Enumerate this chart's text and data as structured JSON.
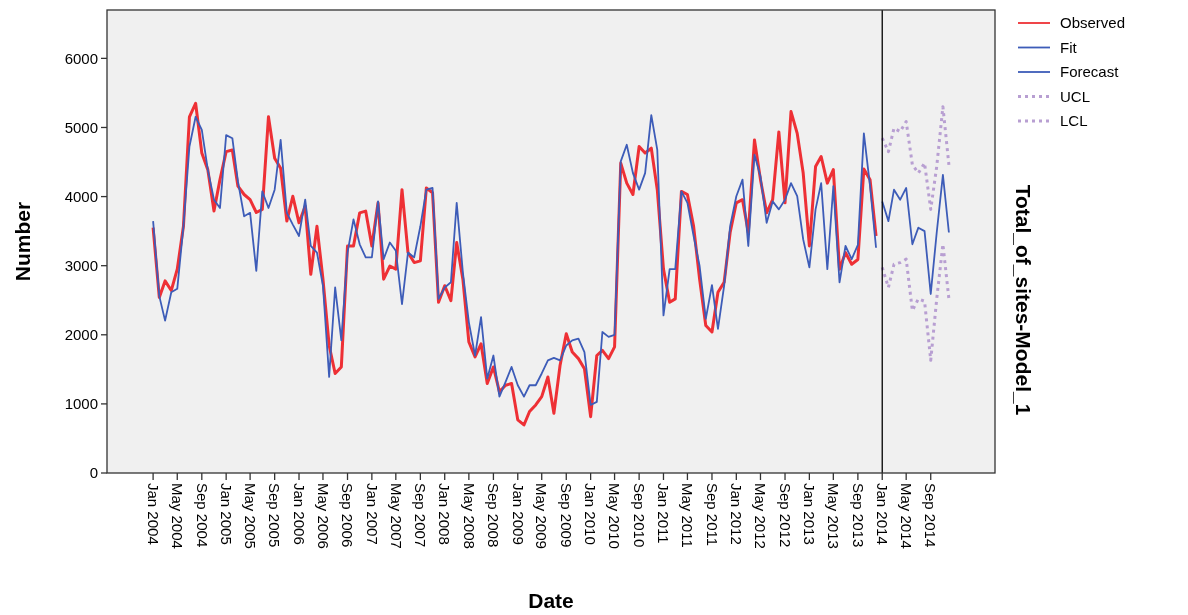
{
  "chart_data": {
    "type": "line",
    "title": "Total_of_sites-Model_1",
    "xlabel": "Date",
    "ylabel": "Number",
    "x": [
      "2004-01",
      "2004-02",
      "2004-03",
      "2004-04",
      "2004-05",
      "2004-06",
      "2004-07",
      "2004-08",
      "2004-09",
      "2004-10",
      "2004-11",
      "2004-12",
      "2005-01",
      "2005-02",
      "2005-03",
      "2005-04",
      "2005-05",
      "2005-06",
      "2005-07",
      "2005-08",
      "2005-09",
      "2005-10",
      "2005-11",
      "2005-12",
      "2006-01",
      "2006-02",
      "2006-03",
      "2006-04",
      "2006-05",
      "2006-06",
      "2006-07",
      "2006-08",
      "2006-09",
      "2006-10",
      "2006-11",
      "2006-12",
      "2007-01",
      "2007-02",
      "2007-03",
      "2007-04",
      "2007-05",
      "2007-06",
      "2007-07",
      "2007-08",
      "2007-09",
      "2007-10",
      "2007-11",
      "2007-12",
      "2008-01",
      "2008-02",
      "2008-03",
      "2008-04",
      "2008-05",
      "2008-06",
      "2008-07",
      "2008-08",
      "2008-09",
      "2008-10",
      "2008-11",
      "2008-12",
      "2009-01",
      "2009-02",
      "2009-03",
      "2009-04",
      "2009-05",
      "2009-06",
      "2009-07",
      "2009-08",
      "2009-09",
      "2009-10",
      "2009-11",
      "2009-12",
      "2010-01",
      "2010-02",
      "2010-03",
      "2010-04",
      "2010-05",
      "2010-06",
      "2010-07",
      "2010-08",
      "2010-09",
      "2010-10",
      "2010-11",
      "2010-12",
      "2011-01",
      "2011-02",
      "2011-03",
      "2011-04",
      "2011-05",
      "2011-06",
      "2011-07",
      "2011-08",
      "2011-09",
      "2011-10",
      "2011-11",
      "2011-12",
      "2012-01",
      "2012-02",
      "2012-03",
      "2012-04",
      "2012-05",
      "2012-06",
      "2012-07",
      "2012-08",
      "2012-09",
      "2012-10",
      "2012-11",
      "2012-12",
      "2013-01",
      "2013-02",
      "2013-03",
      "2013-04",
      "2013-05",
      "2013-06",
      "2013-07",
      "2013-08",
      "2013-09",
      "2013-10",
      "2013-11",
      "2013-12"
    ],
    "series": [
      {
        "name": "Observed",
        "color": "#ee3035",
        "line_style": "solid",
        "values": [
          3550,
          2540,
          2780,
          2640,
          2950,
          3570,
          5155,
          5350,
          4630,
          4390,
          3790,
          4245,
          4650,
          4675,
          4150,
          4030,
          3955,
          3770,
          3815,
          5155,
          4555,
          4410,
          3645,
          4005,
          3620,
          3860,
          2875,
          3570,
          2805,
          1845,
          1440,
          1535,
          3285,
          3285,
          3765,
          3790,
          3285,
          3910,
          2805,
          2995,
          2950,
          4100,
          3190,
          3045,
          3070,
          4125,
          4055,
          2470,
          2710,
          2495,
          3335,
          2805,
          1895,
          1680,
          1870,
          1295,
          1535,
          1175,
          1270,
          1295,
          770,
          695,
          890,
          985,
          1105,
          1390,
          865,
          1560,
          2015,
          1750,
          1655,
          1510,
          815,
          1700,
          1775,
          1655,
          1825,
          4485,
          4195,
          4030,
          4725,
          4630,
          4700,
          4100,
          2950,
          2470,
          2520,
          4075,
          4030,
          3570,
          2805,
          2135,
          2040,
          2615,
          2760,
          3480,
          3910,
          3955,
          3480,
          4820,
          4245,
          3765,
          3955,
          4935,
          3910,
          5230,
          4915,
          4340,
          3285,
          4435,
          4580,
          4195,
          4390,
          2950,
          3190,
          3020,
          3090,
          4400,
          4245,
          3430
        ]
      },
      {
        "name": "Fit",
        "color": "#3d5cb8",
        "line_style": "solid",
        "values": [
          3645,
          2560,
          2205,
          2615,
          2665,
          3570,
          4725,
          5155,
          4965,
          4390,
          3955,
          3835,
          4890,
          4845,
          4220,
          3715,
          3765,
          2925,
          4075,
          3835,
          4100,
          4820,
          3765,
          3595,
          3430,
          3955,
          3285,
          3190,
          2710,
          1390,
          2685,
          1920,
          3190,
          3670,
          3310,
          3120,
          3120,
          3930,
          3095,
          3335,
          3215,
          2445,
          3190,
          3120,
          3570,
          4100,
          4125,
          2520,
          2685,
          2760,
          3910,
          2900,
          2180,
          1700,
          2255,
          1365,
          1700,
          1105,
          1320,
          1535,
          1270,
          1105,
          1270,
          1270,
          1440,
          1630,
          1665,
          1630,
          1845,
          1920,
          1945,
          1750,
          985,
          1030,
          2040,
          1970,
          2000,
          4510,
          4750,
          4340,
          4100,
          4340,
          5180,
          4675,
          2280,
          2950,
          2950,
          4075,
          3910,
          3430,
          2995,
          2230,
          2720,
          2085,
          2710,
          3570,
          4005,
          4245,
          3285,
          4605,
          4290,
          3620,
          3930,
          3815,
          3955,
          4195,
          4005,
          3380,
          2975,
          3815,
          4195,
          2950,
          4150,
          2760,
          3285,
          3095,
          3300,
          4915,
          4150,
          3260
        ]
      },
      {
        "name": "Forecast",
        "color": "#3d5cb8",
        "line_style": "solid",
        "x": [
          "2014-01",
          "2014-02",
          "2014-03",
          "2014-04",
          "2014-05",
          "2014-06",
          "2014-07",
          "2014-08",
          "2014-09",
          "2014-10",
          "2014-11",
          "2014-12"
        ],
        "values": [
          3930,
          3645,
          4100,
          3955,
          4125,
          3310,
          3550,
          3500,
          2590,
          3480,
          4315,
          3480
        ]
      },
      {
        "name": "UCL",
        "color": "#b89fd2",
        "line_style": "dotted",
        "x": [
          "2014-01",
          "2014-02",
          "2014-03",
          "2014-04",
          "2014-05",
          "2014-06",
          "2014-07",
          "2014-08",
          "2014-09",
          "2014-10",
          "2014-11",
          "2014-12"
        ],
        "values": [
          4845,
          4650,
          4990,
          4940,
          5085,
          4460,
          4340,
          4485,
          3815,
          4435,
          5300,
          4460
        ]
      },
      {
        "name": "LCL",
        "color": "#b89fd2",
        "line_style": "dotted",
        "x": [
          "2014-01",
          "2014-02",
          "2014-03",
          "2014-04",
          "2014-05",
          "2014-06",
          "2014-07",
          "2014-08",
          "2014-09",
          "2014-10",
          "2014-11",
          "2014-12"
        ],
        "values": [
          2975,
          2685,
          3020,
          3045,
          3095,
          2350,
          2520,
          2485,
          1630,
          2520,
          3310,
          2520
        ]
      }
    ],
    "xlim": [
      "2003-05-15",
      "2015-07-20"
    ],
    "xticks": [
      {
        "value": "2004-01",
        "label": "Jan 2004"
      },
      {
        "value": "2004-05",
        "label": "May 2004"
      },
      {
        "value": "2004-09",
        "label": "Sep 2004"
      },
      {
        "value": "2005-01",
        "label": "Jan 2005"
      },
      {
        "value": "2005-05",
        "label": "May 2005"
      },
      {
        "value": "2005-09",
        "label": "Sep 2005"
      },
      {
        "value": "2006-01",
        "label": "Jan 2006"
      },
      {
        "value": "2006-05",
        "label": "May 2006"
      },
      {
        "value": "2006-09",
        "label": "Sep 2006"
      },
      {
        "value": "2007-01",
        "label": "Jan 2007"
      },
      {
        "value": "2007-05",
        "label": "May 2007"
      },
      {
        "value": "2007-09",
        "label": "Sep 2007"
      },
      {
        "value": "2008-01",
        "label": "Jan 2008"
      },
      {
        "value": "2008-05",
        "label": "May 2008"
      },
      {
        "value": "2008-09",
        "label": "Sep 2008"
      },
      {
        "value": "2009-01",
        "label": "Jan 2009"
      },
      {
        "value": "2009-05",
        "label": "May 2009"
      },
      {
        "value": "2009-09",
        "label": "Sep 2009"
      },
      {
        "value": "2010-01",
        "label": "Jan 2010"
      },
      {
        "value": "2010-05",
        "label": "May 2010"
      },
      {
        "value": "2010-09",
        "label": "Sep 2010"
      },
      {
        "value": "2011-01",
        "label": "Jan 2011"
      },
      {
        "value": "2011-05",
        "label": "May 2011"
      },
      {
        "value": "2011-09",
        "label": "Sep 2011"
      },
      {
        "value": "2012-01",
        "label": "Jan 2012"
      },
      {
        "value": "2012-05",
        "label": "May 2012"
      },
      {
        "value": "2012-09",
        "label": "Sep 2012"
      },
      {
        "value": "2013-01",
        "label": "Jan 2013"
      },
      {
        "value": "2013-05",
        "label": "May 2013"
      },
      {
        "value": "2013-09",
        "label": "Sep 2013"
      },
      {
        "value": "2014-01",
        "label": "Jan 2014"
      },
      {
        "value": "2014-05",
        "label": "May 2014"
      },
      {
        "value": "2014-09",
        "label": "Sep 2014"
      }
    ],
    "ylim": [
      0,
      6700
    ],
    "yticks": [
      0,
      1000,
      2000,
      3000,
      4000,
      5000,
      6000
    ],
    "ref_lines": [
      {
        "axis": "x",
        "value": "2014-01",
        "color": "#000000"
      }
    ],
    "grid": false,
    "legend": "top right",
    "marker": "none"
  }
}
